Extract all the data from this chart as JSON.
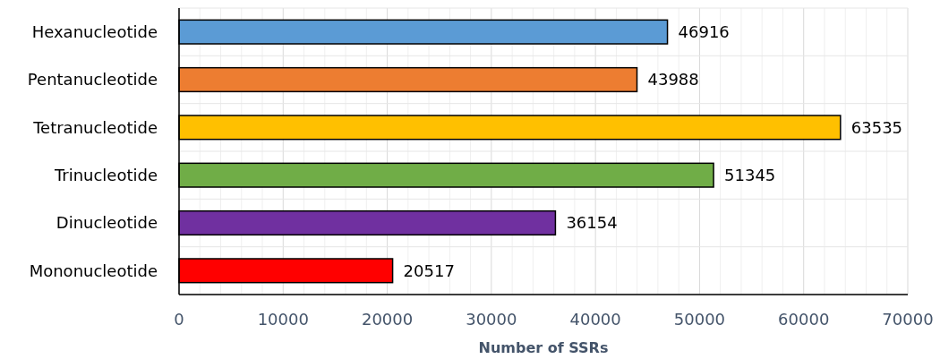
{
  "chart_data": {
    "type": "bar",
    "orientation": "horizontal",
    "xlabel": "Number of SSRs",
    "categories": [
      "Hexanucleotide",
      "Pentanucleotide",
      "Tetranucleotide",
      "Trinucleotide",
      "Dinucleotide",
      "Mononucleotide"
    ],
    "values": [
      46916,
      43988,
      63535,
      51345,
      36154,
      20517
    ],
    "colors": [
      "#5b9bd5",
      "#ed7d31",
      "#ffc000",
      "#70ad47",
      "#7030a0",
      "#ff0000"
    ],
    "xlim": [
      0,
      70000
    ],
    "xticks": [
      0,
      {
        "value": 2000,
        "label": null
      },
      {
        "value": 4000,
        "label": null
      },
      {
        "value": 6000,
        "label": null
      },
      {
        "value": 8000,
        "label": null
      },
      10000,
      {
        "value": 12000,
        "label": null
      },
      {
        "value": 14000,
        "label": null
      },
      {
        "value": 16000,
        "label": null
      },
      {
        "value": 18000,
        "label": null
      },
      20000,
      {
        "value": 22000,
        "label": null
      },
      {
        "value": 24000,
        "label": null
      },
      {
        "value": 26000,
        "label": null
      },
      {
        "value": 28000,
        "label": null
      },
      30000,
      {
        "value": 32000,
        "label": null
      },
      {
        "value": 34000,
        "label": null
      },
      {
        "value": 36000,
        "label": null
      },
      {
        "value": 38000,
        "label": null
      },
      40000,
      {
        "value": 42000,
        "label": null
      },
      {
        "value": 44000,
        "label": null
      },
      {
        "value": 46000,
        "label": null
      },
      {
        "value": 48000,
        "label": null
      },
      50000,
      {
        "value": 52000,
        "label": null
      },
      {
        "value": 54000,
        "label": null
      },
      {
        "value": 56000,
        "label": null
      },
      {
        "value": 58000,
        "label": null
      },
      60000,
      {
        "value": 62000,
        "label": null
      },
      {
        "value": 64000,
        "label": null
      },
      {
        "value": 66000,
        "label": null
      },
      {
        "value": 68000,
        "label": null
      },
      70000
    ],
    "grid": true,
    "data_labels": true
  }
}
